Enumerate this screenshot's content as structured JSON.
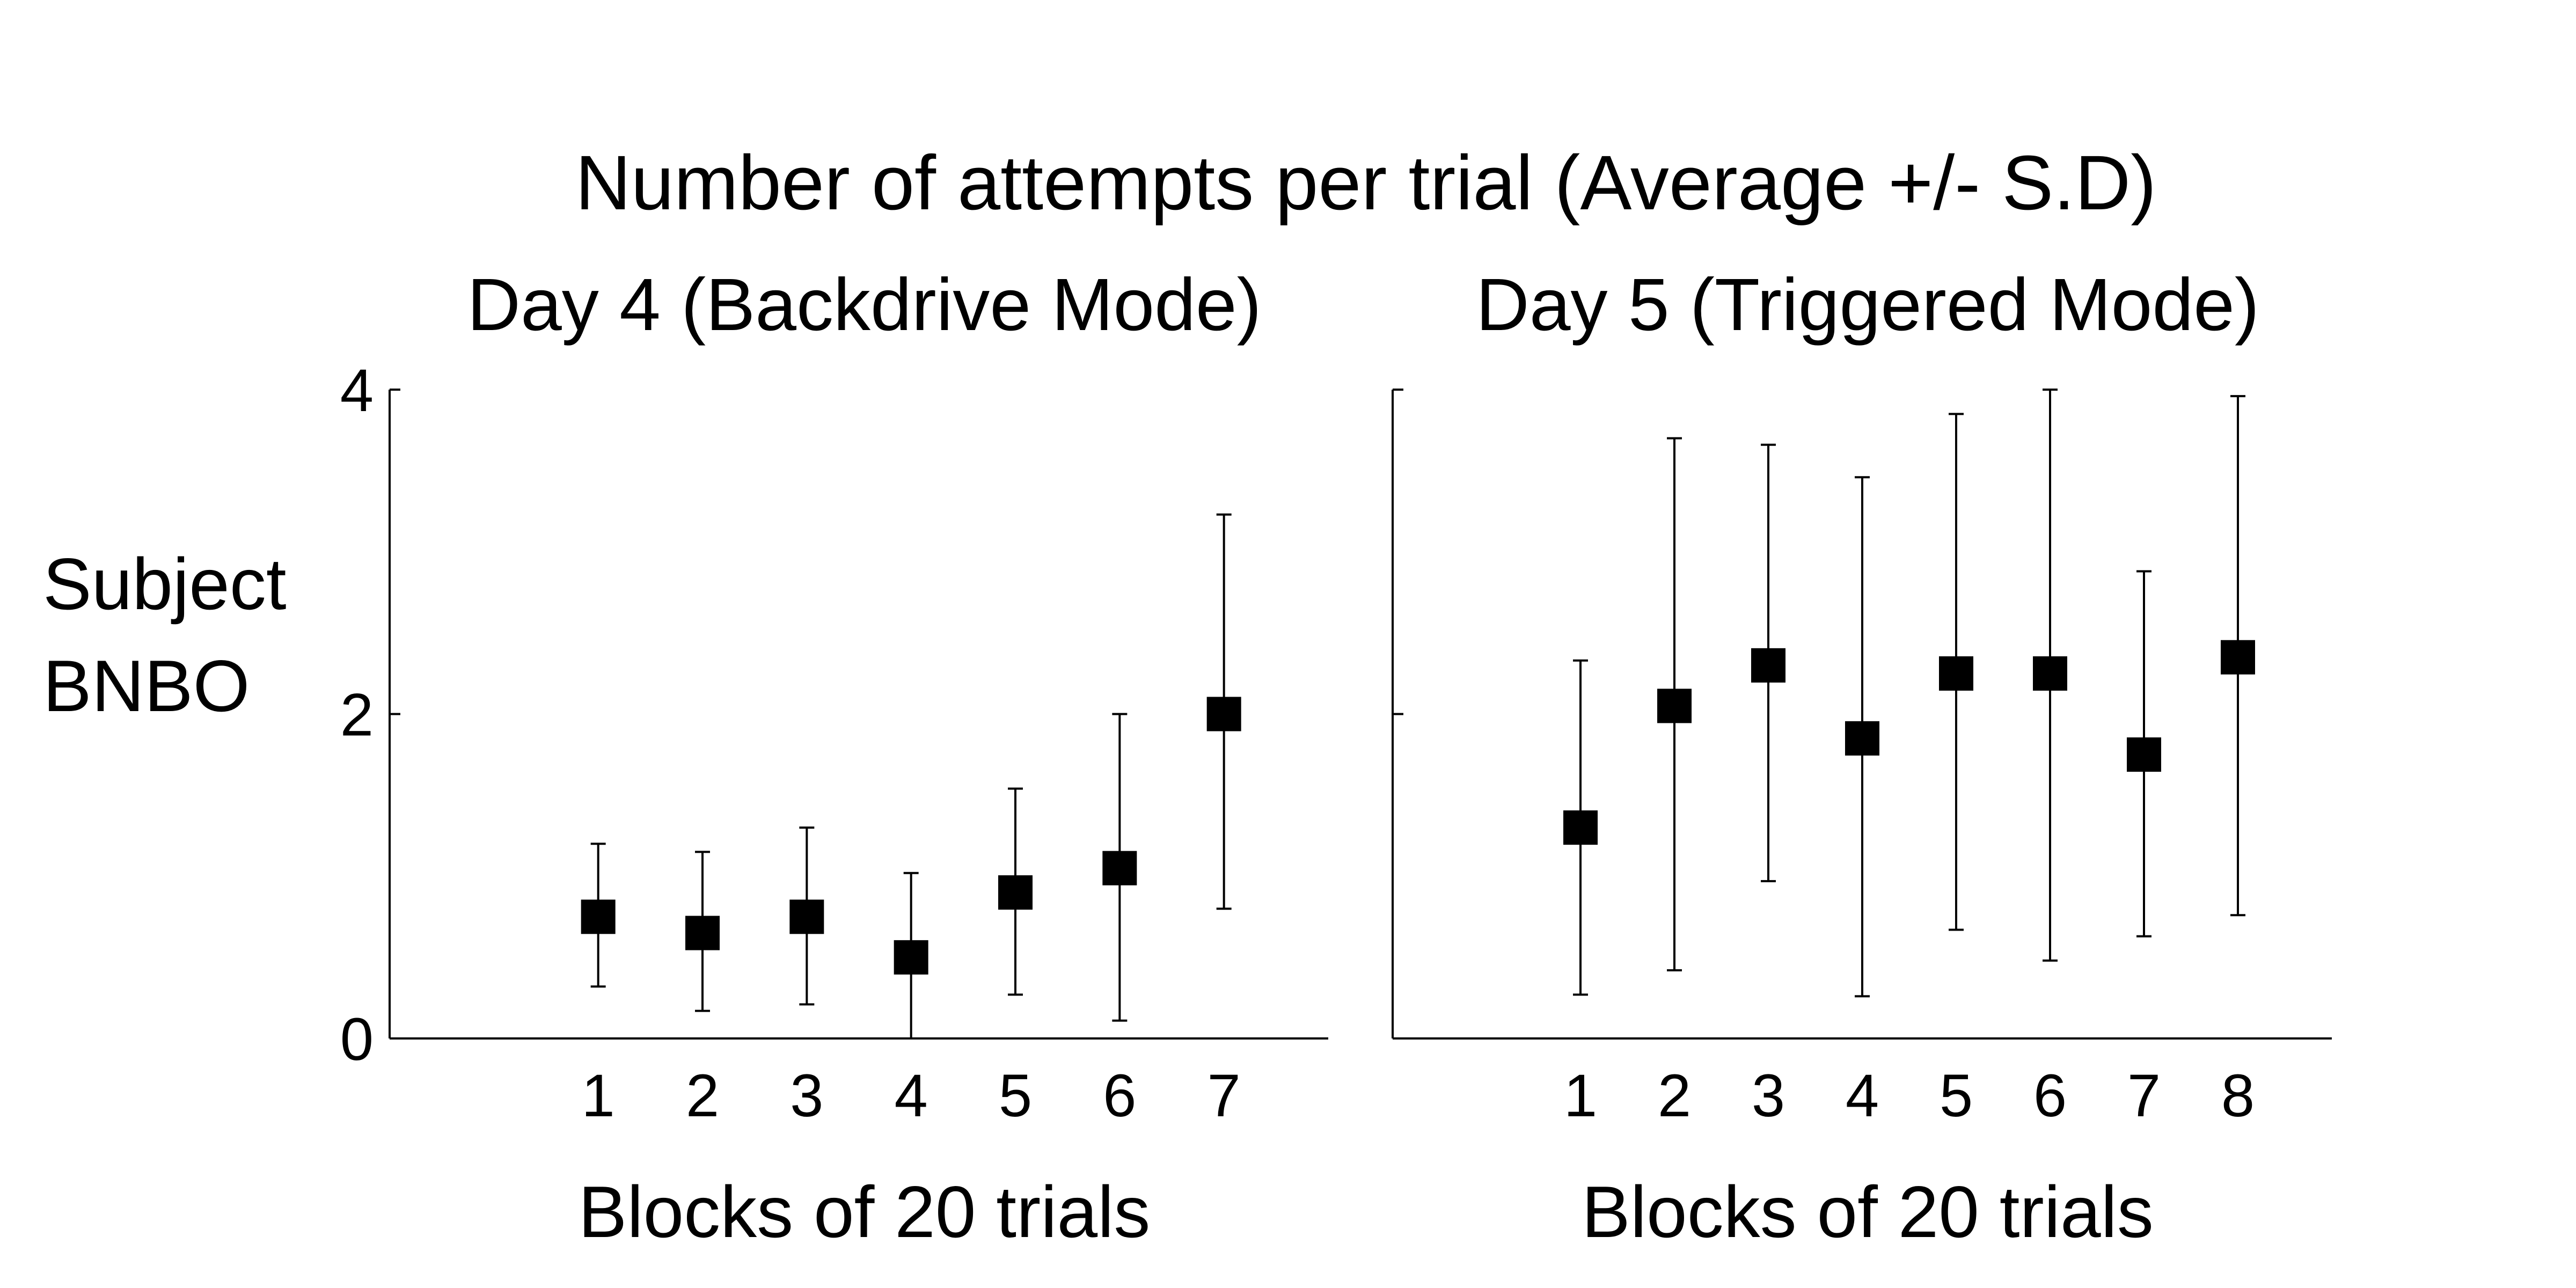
{
  "figure": {
    "title": "Number of attempts per trial (Average +/- S.D)",
    "ylabel_line1": "Subject",
    "ylabel_line2": "BNBO"
  },
  "chart_data": [
    {
      "type": "scatter",
      "title": "Day 4 (Backdrive Mode)",
      "xlabel": "Blocks of 20 trials",
      "ylabel": "",
      "x": [
        1,
        2,
        3,
        4,
        5,
        6,
        7
      ],
      "y": [
        0.75,
        0.65,
        0.75,
        0.5,
        0.9,
        1.05,
        2.0
      ],
      "err_low": [
        0.32,
        0.17,
        0.21,
        0.0,
        0.27,
        0.11,
        0.8
      ],
      "err_high": [
        1.2,
        1.15,
        1.3,
        1.02,
        1.54,
        2.0,
        3.23
      ],
      "xlim": [
        -1,
        8
      ],
      "ylim": [
        0,
        4
      ],
      "xticks": [
        1,
        2,
        3,
        4,
        5,
        6,
        7
      ],
      "yticks": [
        0,
        2,
        4
      ],
      "show_ytick_labels": true,
      "marker": "square",
      "color": "#000000",
      "grid": false
    },
    {
      "type": "scatter",
      "title": "Day 5 (Triggered Mode)",
      "xlabel": "Blocks of 20 trials",
      "ylabel": "",
      "x": [
        1,
        2,
        3,
        4,
        5,
        6,
        7,
        8
      ],
      "y": [
        1.3,
        2.05,
        2.3,
        1.85,
        2.25,
        2.25,
        1.75,
        2.35
      ],
      "err_low": [
        0.27,
        0.42,
        0.97,
        0.26,
        0.67,
        0.48,
        0.63,
        0.76
      ],
      "err_high": [
        2.33,
        3.7,
        3.66,
        3.46,
        3.85,
        4.0,
        2.88,
        3.96
      ],
      "xlim": [
        -1,
        9
      ],
      "ylim": [
        0,
        4
      ],
      "xticks": [
        1,
        2,
        3,
        4,
        5,
        6,
        7,
        8
      ],
      "yticks": [
        0,
        2,
        4
      ],
      "show_ytick_labels": false,
      "marker": "square",
      "color": "#000000",
      "grid": false
    }
  ]
}
